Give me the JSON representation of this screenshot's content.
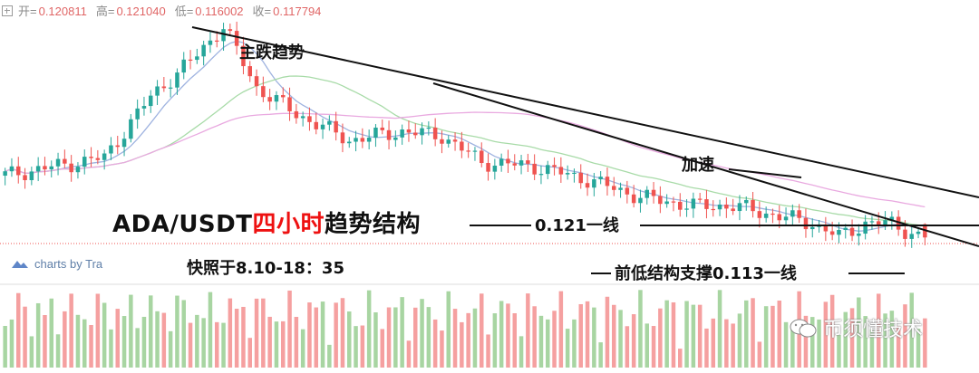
{
  "ohlc": {
    "open_label": "开=",
    "open": "0.120811",
    "high_label": "高=",
    "high": "0.121040",
    "low_label": "低=",
    "low": "0.116002",
    "close_label": "收=",
    "close": "0.117794"
  },
  "title": {
    "pair": "ADA/USDT",
    "timeframe": "四小时",
    "suffix": "趋势结构"
  },
  "snapshot_text": "快照于8.10-18：35",
  "brand": "charts by Tra",
  "watermark": "币须懂技术",
  "annotations": {
    "main_trend": "主跌趋势",
    "accelerate": "加速",
    "resistance": "0.121一线",
    "support": "前低结构支撑0.113一线"
  },
  "colors": {
    "up": "#26a69a",
    "down": "#ef5350",
    "vol_up": "#a8d5a2",
    "vol_down": "#f5a0a0",
    "ma_fast": "#9fb3e0",
    "ma_mid": "#a8dba8",
    "ma_slow": "#e9a9e0",
    "price_line": "#ef5350"
  },
  "chart_data": {
    "type": "candlestick",
    "instrument": "ADA/USDT",
    "last_ohlc": {
      "open": 0.120811,
      "high": 0.12104,
      "low": 0.116002,
      "close": 0.117794
    },
    "levels": [
      {
        "label": "0.121一线",
        "value": 0.121
      },
      {
        "label": "前低结构支撑0.113一线",
        "value": 0.113
      }
    ],
    "trendlines": [
      "主跌趋势",
      "加速"
    ],
    "legend": false,
    "grid": false,
    "path": [
      [
        0,
        0.132
      ],
      [
        15,
        0.136
      ],
      [
        22,
        0.15
      ],
      [
        28,
        0.158
      ],
      [
        33,
        0.166
      ],
      [
        38,
        0.152
      ],
      [
        44,
        0.146
      ],
      [
        52,
        0.14
      ],
      [
        60,
        0.142
      ],
      [
        66,
        0.141
      ],
      [
        72,
        0.135
      ],
      [
        80,
        0.134
      ],
      [
        88,
        0.131
      ],
      [
        96,
        0.127
      ],
      [
        104,
        0.125
      ],
      [
        110,
        0.125
      ],
      [
        116,
        0.123
      ],
      [
        122,
        0.121
      ],
      [
        126,
        0.118
      ],
      [
        130,
        0.121
      ],
      [
        134,
        0.121
      ],
      [
        138,
        0.118
      ]
    ]
  }
}
